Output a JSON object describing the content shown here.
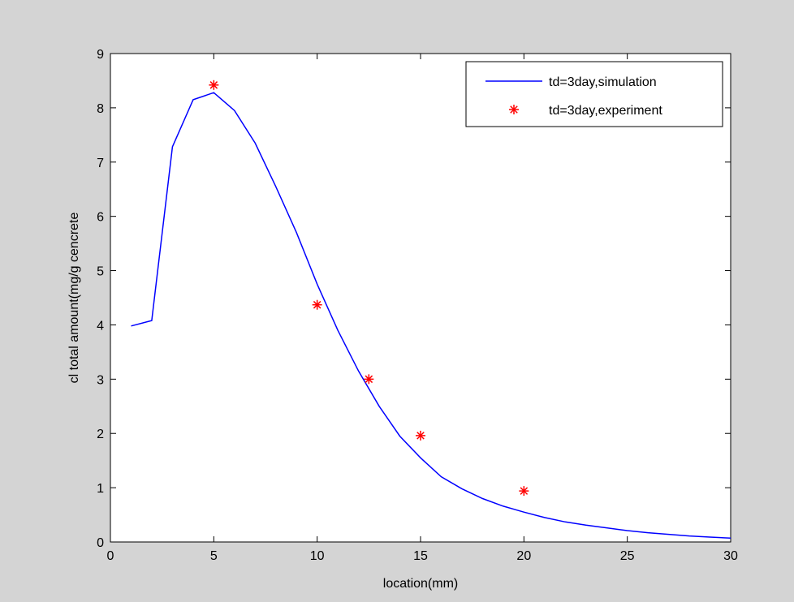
{
  "chart_data": {
    "type": "line",
    "xlabel": "location(mm)",
    "ylabel": "cl total amount(mg/g cencrete",
    "xlim": [
      0,
      30
    ],
    "ylim": [
      0,
      9
    ],
    "xticks": [
      0,
      5,
      10,
      15,
      20,
      25,
      30
    ],
    "yticks": [
      0,
      1,
      2,
      3,
      4,
      5,
      6,
      7,
      8,
      9
    ],
    "grid": false,
    "legend_position": "top-right",
    "series": [
      {
        "name": "td=3day,simulation",
        "style": "line",
        "color": "#0000ff",
        "x": [
          1,
          2,
          3,
          4,
          5,
          6,
          7,
          8,
          9,
          10,
          11,
          12,
          13,
          14,
          15,
          16,
          17,
          18,
          19,
          20,
          21,
          22,
          23,
          24,
          25,
          26,
          27,
          28,
          29,
          30
        ],
        "y": [
          3.98,
          4.08,
          7.28,
          8.15,
          8.28,
          7.95,
          7.35,
          6.55,
          5.7,
          4.75,
          3.9,
          3.15,
          2.5,
          1.95,
          1.55,
          1.2,
          0.98,
          0.8,
          0.66,
          0.55,
          0.45,
          0.37,
          0.31,
          0.26,
          0.21,
          0.17,
          0.14,
          0.11,
          0.09,
          0.07
        ]
      },
      {
        "name": "td=3day,experiment",
        "style": "marker",
        "marker": "asterisk",
        "color": "#ff0000",
        "x": [
          5,
          10,
          12.5,
          15,
          20
        ],
        "y": [
          8.42,
          4.37,
          3.0,
          1.96,
          0.94
        ]
      }
    ]
  }
}
